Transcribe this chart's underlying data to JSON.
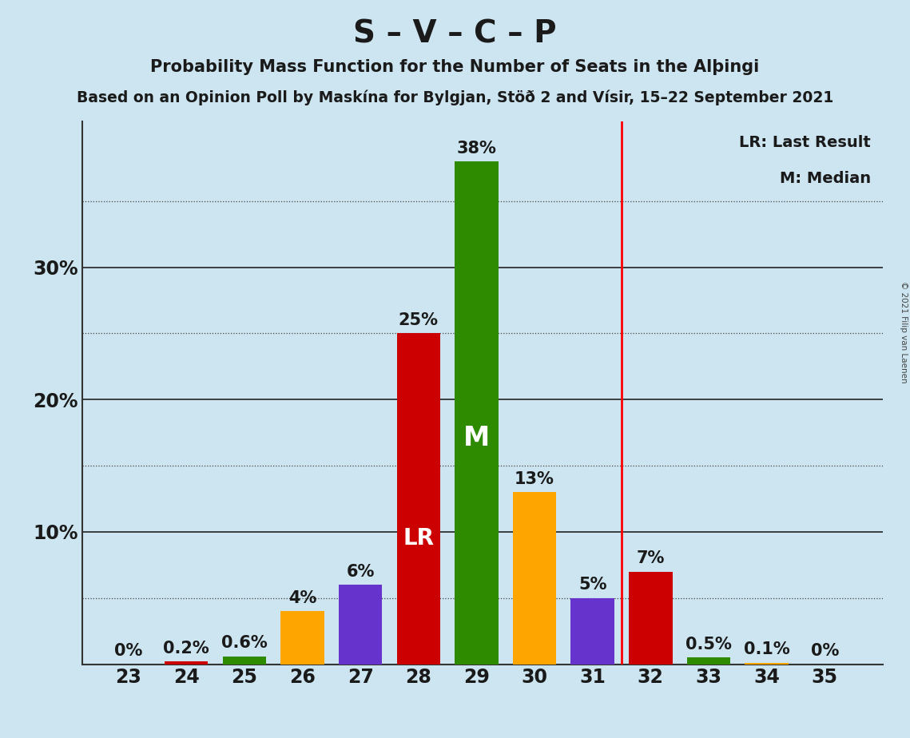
{
  "title_main": "S – V – C – P",
  "title_sub1": "Probability Mass Function for the Number of Seats in the Alþingi",
  "title_sub2": "Based on an Opinion Poll by Maskína for Bylgjan, Stöð 2 and Vísir, 15–22 September 2021",
  "copyright": "© 2021 Filip van Laenen",
  "seats": [
    23,
    24,
    25,
    26,
    27,
    28,
    29,
    30,
    31,
    32,
    33,
    34,
    35
  ],
  "probabilities": [
    0.0,
    0.2,
    0.6,
    4.0,
    6.0,
    25.0,
    38.0,
    13.0,
    5.0,
    7.0,
    0.5,
    0.1,
    0.0
  ],
  "bar_colors": [
    "#cc0000",
    "#cc0000",
    "#2e8b00",
    "#ffa500",
    "#6633cc",
    "#cc0000",
    "#2e8b00",
    "#ffa500",
    "#6633cc",
    "#cc0000",
    "#2e8b00",
    "#ffa500",
    "#ffa500"
  ],
  "lr_seat": 28,
  "median_seat": 29,
  "vertical_line_seat": 31.5,
  "background_color": "#cce5f0",
  "solid_grid_lines": [
    10,
    20,
    30
  ],
  "dotted_grid_lines": [
    5,
    15,
    25,
    35
  ],
  "ytick_positions": [
    10,
    20,
    30
  ],
  "ytick_labels": [
    "10%",
    "20%",
    "30%"
  ],
  "ylim": [
    0,
    41
  ],
  "xlim": [
    22.2,
    36
  ],
  "legend_lr": "LR: Last Result",
  "legend_m": "M: Median",
  "bar_width": 0.75
}
